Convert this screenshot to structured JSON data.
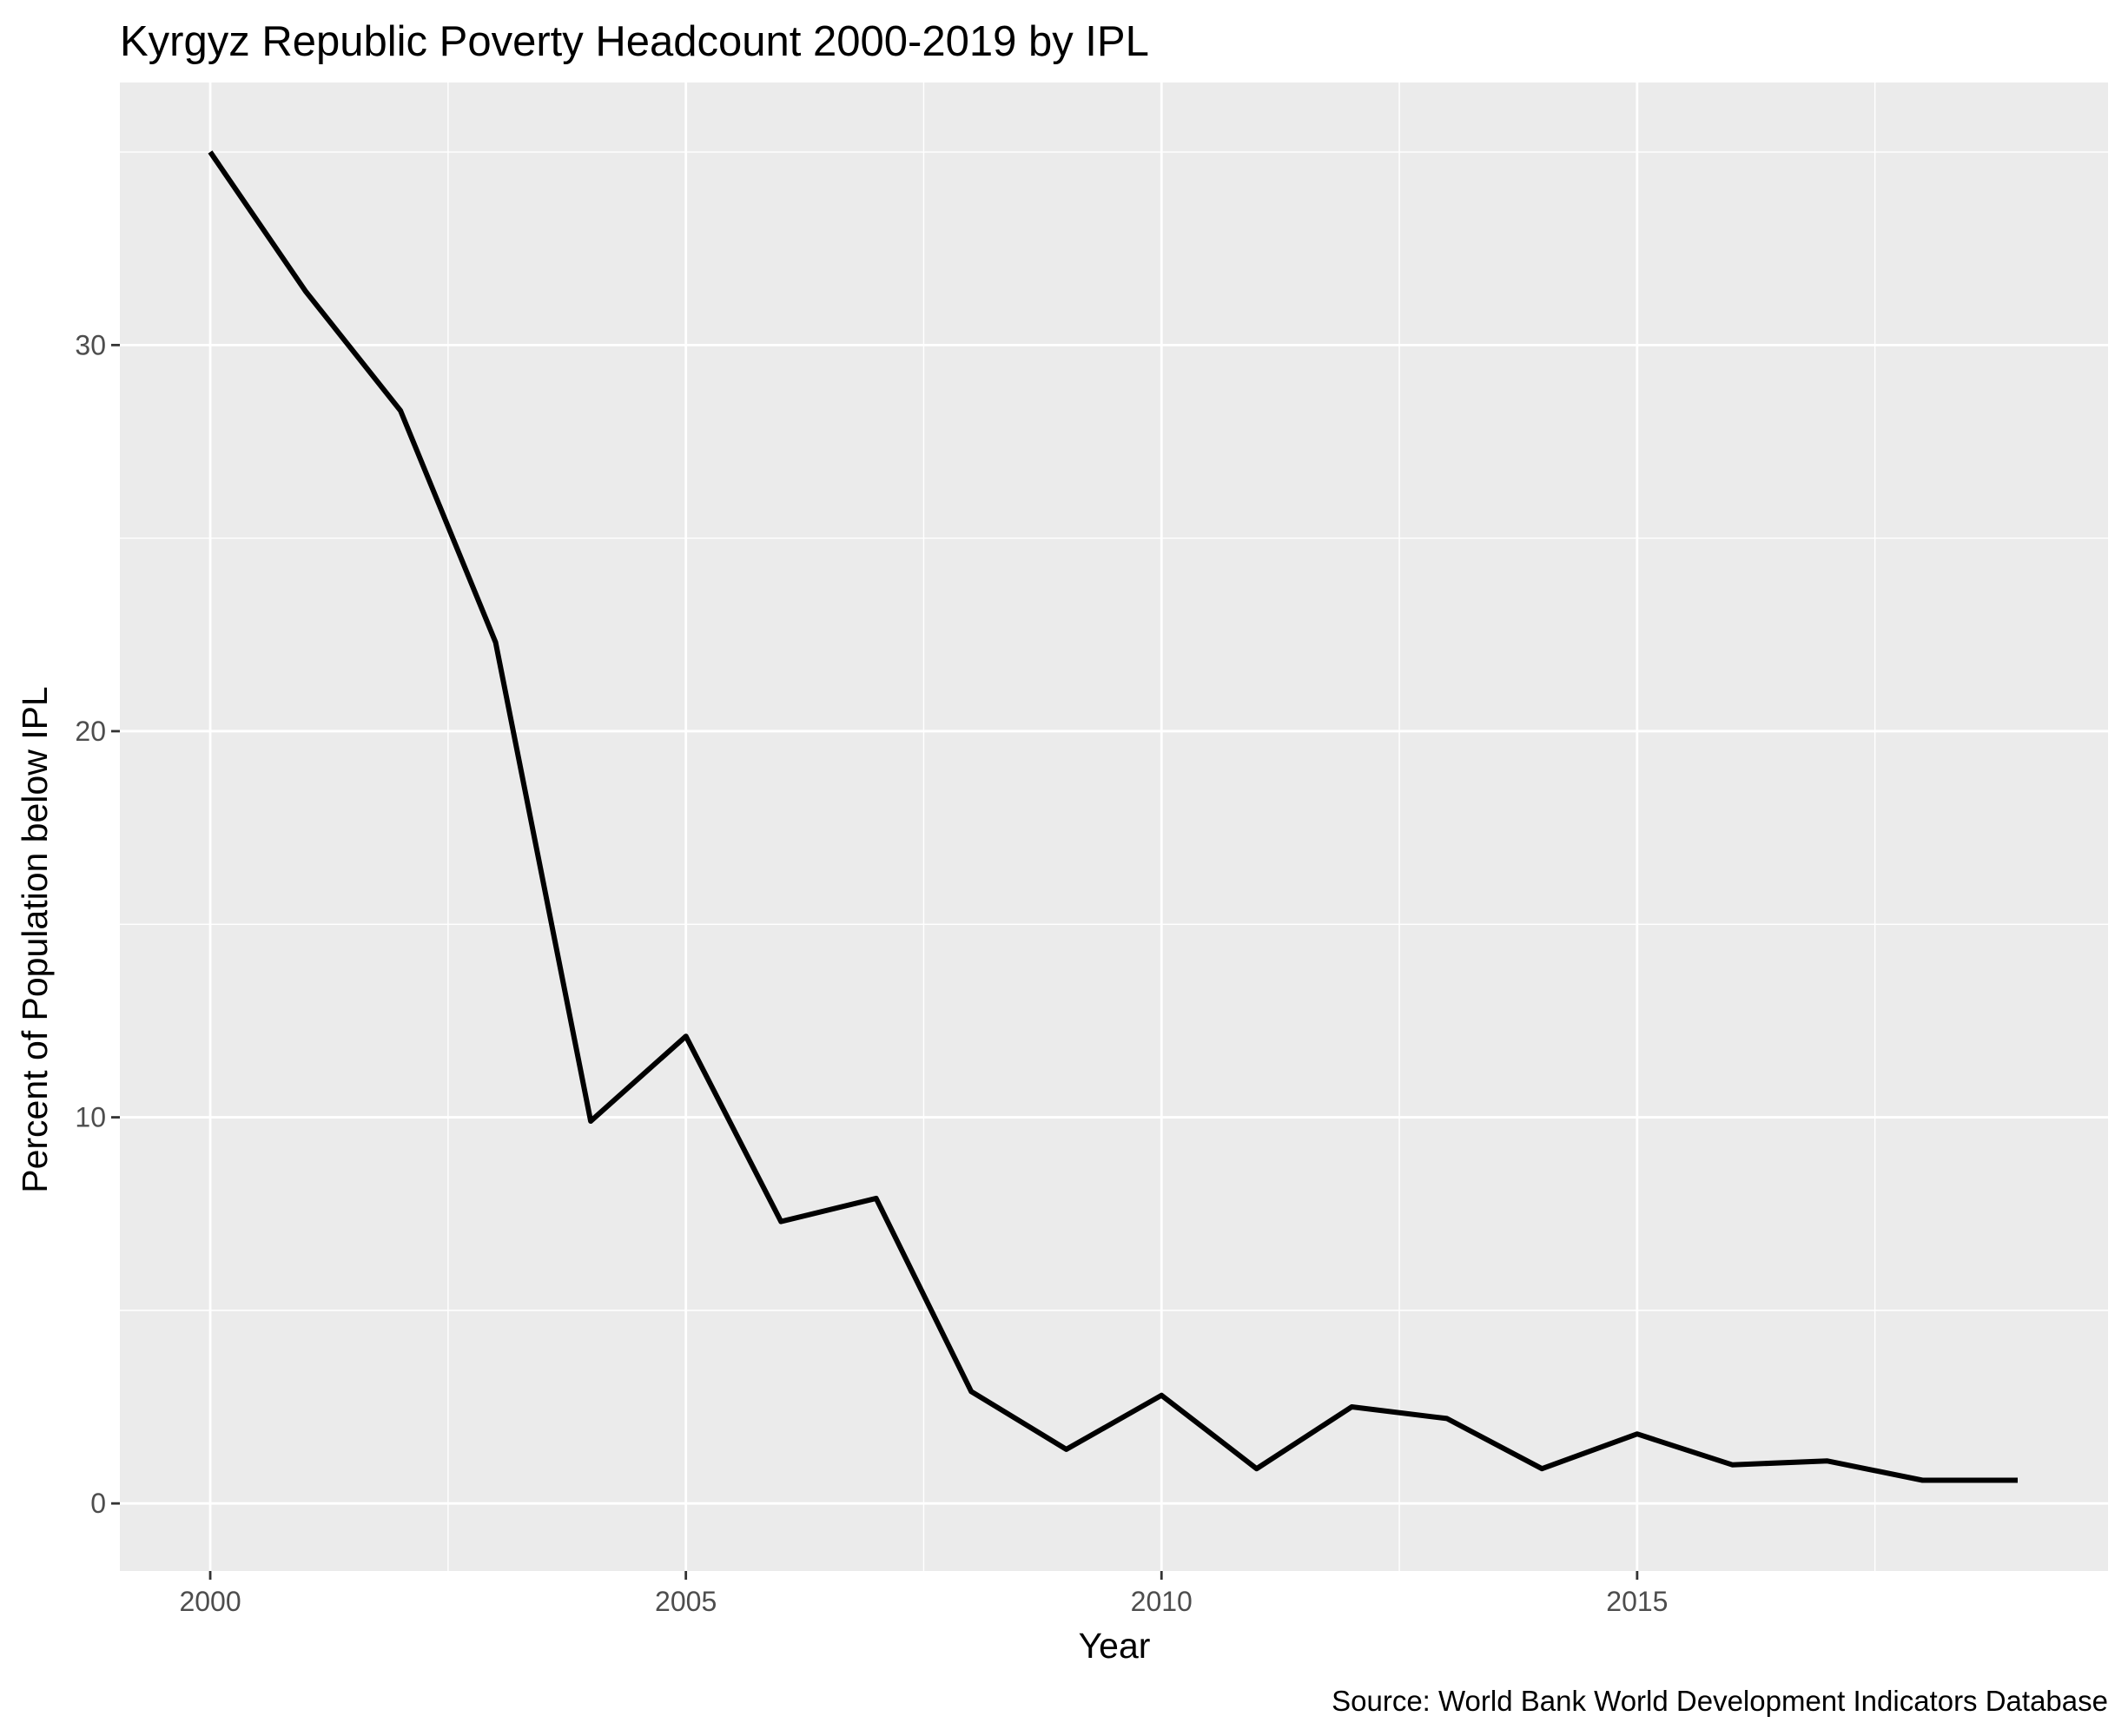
{
  "chart_data": {
    "type": "line",
    "title": "Kyrgyz Republic Poverty Headcount 2000-2019 by IPL",
    "xlabel": "Year",
    "ylabel": "Percent of Population below IPL",
    "caption": "Source: World Bank World Development Indicators Database",
    "x": [
      2000,
      2001,
      2002,
      2003,
      2004,
      2005,
      2006,
      2007,
      2008,
      2009,
      2010,
      2011,
      2012,
      2013,
      2014,
      2015,
      2016,
      2017,
      2018,
      2019
    ],
    "series": [
      {
        "values": [
          35.0,
          31.4,
          28.3,
          22.3,
          9.9,
          12.1,
          7.3,
          7.9,
          2.9,
          1.4,
          2.8,
          0.9,
          2.5,
          2.2,
          0.9,
          1.8,
          1.0,
          1.1,
          0.6,
          0.6
        ]
      }
    ],
    "xlim": [
      1999.05,
      2019.95
    ],
    "ylim": [
      -1.75,
      36.8
    ],
    "x_ticks": [
      2000,
      2005,
      2010,
      2015
    ],
    "x_tick_labels": [
      "2000",
      "2005",
      "2010",
      "2015"
    ],
    "y_ticks": [
      0,
      10,
      20,
      30
    ],
    "y_tick_labels": [
      "0",
      "10",
      "20",
      "30"
    ],
    "grid": true,
    "legend": "none",
    "colors": {
      "panel": "#ebebeb",
      "grid": "#ffffff",
      "line": "#000000",
      "tick": "#333333",
      "tick_label": "#4d4d4d"
    }
  }
}
